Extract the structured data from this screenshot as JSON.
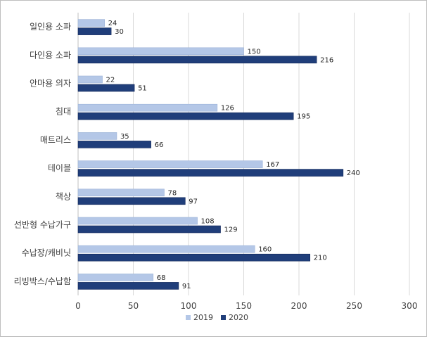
{
  "chart_data": {
    "type": "bar",
    "orientation": "horizontal",
    "categories": [
      "일인용 소파",
      "다인용 소파",
      "안마용 의자",
      "침대",
      "매트리스",
      "테이블",
      "책상",
      "선반형 수납가구",
      "수납장/캐비닛",
      "리빙박스/수납함"
    ],
    "series": [
      {
        "name": "2019",
        "values": [
          24,
          150,
          22,
          126,
          35,
          167,
          78,
          108,
          160,
          68
        ],
        "color": "#b4c7e7"
      },
      {
        "name": "2020",
        "values": [
          30,
          216,
          51,
          195,
          66,
          240,
          97,
          129,
          210,
          91
        ],
        "color": "#203e7a"
      }
    ],
    "xlim": [
      0,
      300
    ],
    "xticks": [
      0,
      50,
      100,
      150,
      200,
      250,
      300
    ],
    "grid": true,
    "legend_position": "bottom",
    "data_labels": true
  }
}
